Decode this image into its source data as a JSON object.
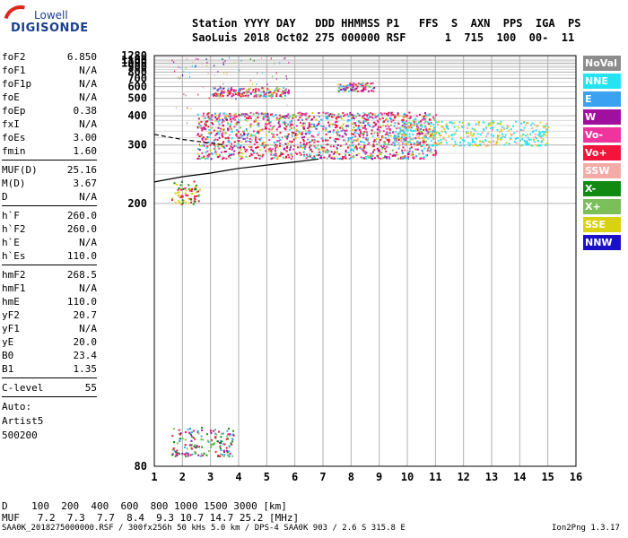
{
  "logo": {
    "line1": "Lowell",
    "line2": "DIGISONDE"
  },
  "header": {
    "line1": "Station YYYY DAY   DDD HHMMSS P1   FFS  S  AXN  PPS  IGA  PS",
    "line2": "SaoLuis 2018 Oct02 275 000000 RSF      1  715  100  00-  11"
  },
  "params": [
    {
      "k": "foF2",
      "v": "6.850"
    },
    {
      "k": "foF1",
      "v": "N/A"
    },
    {
      "k": "foF1p",
      "v": "N/A"
    },
    {
      "k": "foE",
      "v": "N/A"
    },
    {
      "k": "foEp",
      "v": "0.38"
    },
    {
      "k": "fxI",
      "v": "N/A"
    },
    {
      "k": "foEs",
      "v": "3.00"
    },
    {
      "k": "fmin",
      "v": "1.60"
    },
    {
      "k": "MUF(D)",
      "v": "25.16"
    },
    {
      "k": "M(D)",
      "v": "3.67"
    },
    {
      "k": "D",
      "v": "N/A"
    },
    {
      "k": "h`F",
      "v": "260.0"
    },
    {
      "k": "h`F2",
      "v": "260.0"
    },
    {
      "k": "h`E",
      "v": "N/A"
    },
    {
      "k": "h`Es",
      "v": "110.0"
    },
    {
      "k": "hmF2",
      "v": "268.5"
    },
    {
      "k": "hmF1",
      "v": "N/A"
    },
    {
      "k": "hmE",
      "v": "110.0"
    },
    {
      "k": "yF2",
      "v": "20.7"
    },
    {
      "k": "yF1",
      "v": "N/A"
    },
    {
      "k": "yE",
      "v": "20.0"
    },
    {
      "k": "B0",
      "v": "23.4"
    },
    {
      "k": "B1",
      "v": "1.35"
    },
    {
      "k": "C-level",
      "v": "55"
    }
  ],
  "auto": {
    "line1": "Auto:",
    "line2": "Artist5",
    "line3": "500200"
  },
  "legend": [
    {
      "label": "NoVal",
      "color": "#8c8c8c"
    },
    {
      "label": "NNE",
      "color": "#25e3f2"
    },
    {
      "label": "E",
      "color": "#3aa2f0"
    },
    {
      "label": "W",
      "color": "#a0109e"
    },
    {
      "label": "Vo-",
      "color": "#f0349e"
    },
    {
      "label": "Vo+",
      "color": "#f2143a"
    },
    {
      "label": "SSW",
      "color": "#f4aaa6"
    },
    {
      "label": "X-",
      "color": "#128a12"
    },
    {
      "label": "X+",
      "color": "#7bbf5a"
    },
    {
      "label": "SSE",
      "color": "#d8d210"
    },
    {
      "label": "NNW",
      "color": "#1a10c8"
    }
  ],
  "bottom": {
    "row1": "D    100  200  400  600  800 1000 1500 3000 [km]",
    "row2": "MUF   7.2  7.3  7.7  8.4  9.3 10.7 14.7 25.2 [MHz]"
  },
  "footer": {
    "left": "SAA0K_2018275000000.RSF / 300fx256h 50 kHs 5.0 km / DPS-4 SAA0K 903 / 2.6 S 315.8 E",
    "right": "Ion2Png 1.3.17"
  },
  "chart_data": {
    "type": "scatter",
    "title": "",
    "xlabel": "",
    "ylabel": "",
    "xlim": [
      1,
      16
    ],
    "x_ticks": [
      1,
      2,
      3,
      4,
      5,
      6,
      7,
      8,
      9,
      10,
      11,
      12,
      13,
      14,
      15,
      16
    ],
    "y_ticks": [
      80,
      200,
      300,
      400,
      500,
      600,
      700,
      800,
      900,
      1000,
      1100,
      1280
    ],
    "y_scale": "reciprocal",
    "grid": true,
    "x_unit": "MHz",
    "y_unit": "km",
    "echo_regions": [
      {
        "name": "E-layer",
        "x": [
          1.6,
          2.6
        ],
        "y": [
          200,
          230
        ]
      },
      {
        "name": "Es",
        "x": [
          1.6,
          3.8
        ],
        "y": [
          82,
          88
        ]
      },
      {
        "name": "F-main",
        "x": [
          2.5,
          11.0
        ],
        "y": [
          270,
          420
        ]
      },
      {
        "name": "F-high",
        "x": [
          9.5,
          15.0
        ],
        "y": [
          300,
          380
        ]
      },
      {
        "name": "F-2hop",
        "x": [
          3.0,
          5.8
        ],
        "y": [
          520,
          600
        ]
      },
      {
        "name": "F-2hop-b",
        "x": [
          7.5,
          8.8
        ],
        "y": [
          560,
          650
        ]
      }
    ],
    "traces": [
      {
        "name": "O-trace",
        "x": [
          1.0,
          2.0,
          3.0,
          4.0,
          5.0,
          6.0,
          6.85
        ],
        "y": [
          228,
          236,
          242,
          250,
          256,
          262,
          268
        ]
      },
      {
        "name": "dashed-trace",
        "x": [
          1.0,
          1.5,
          2.0,
          2.5,
          3.0,
          3.5
        ],
        "y": [
          330,
          322,
          315,
          310,
          305,
          300
        ]
      }
    ]
  }
}
